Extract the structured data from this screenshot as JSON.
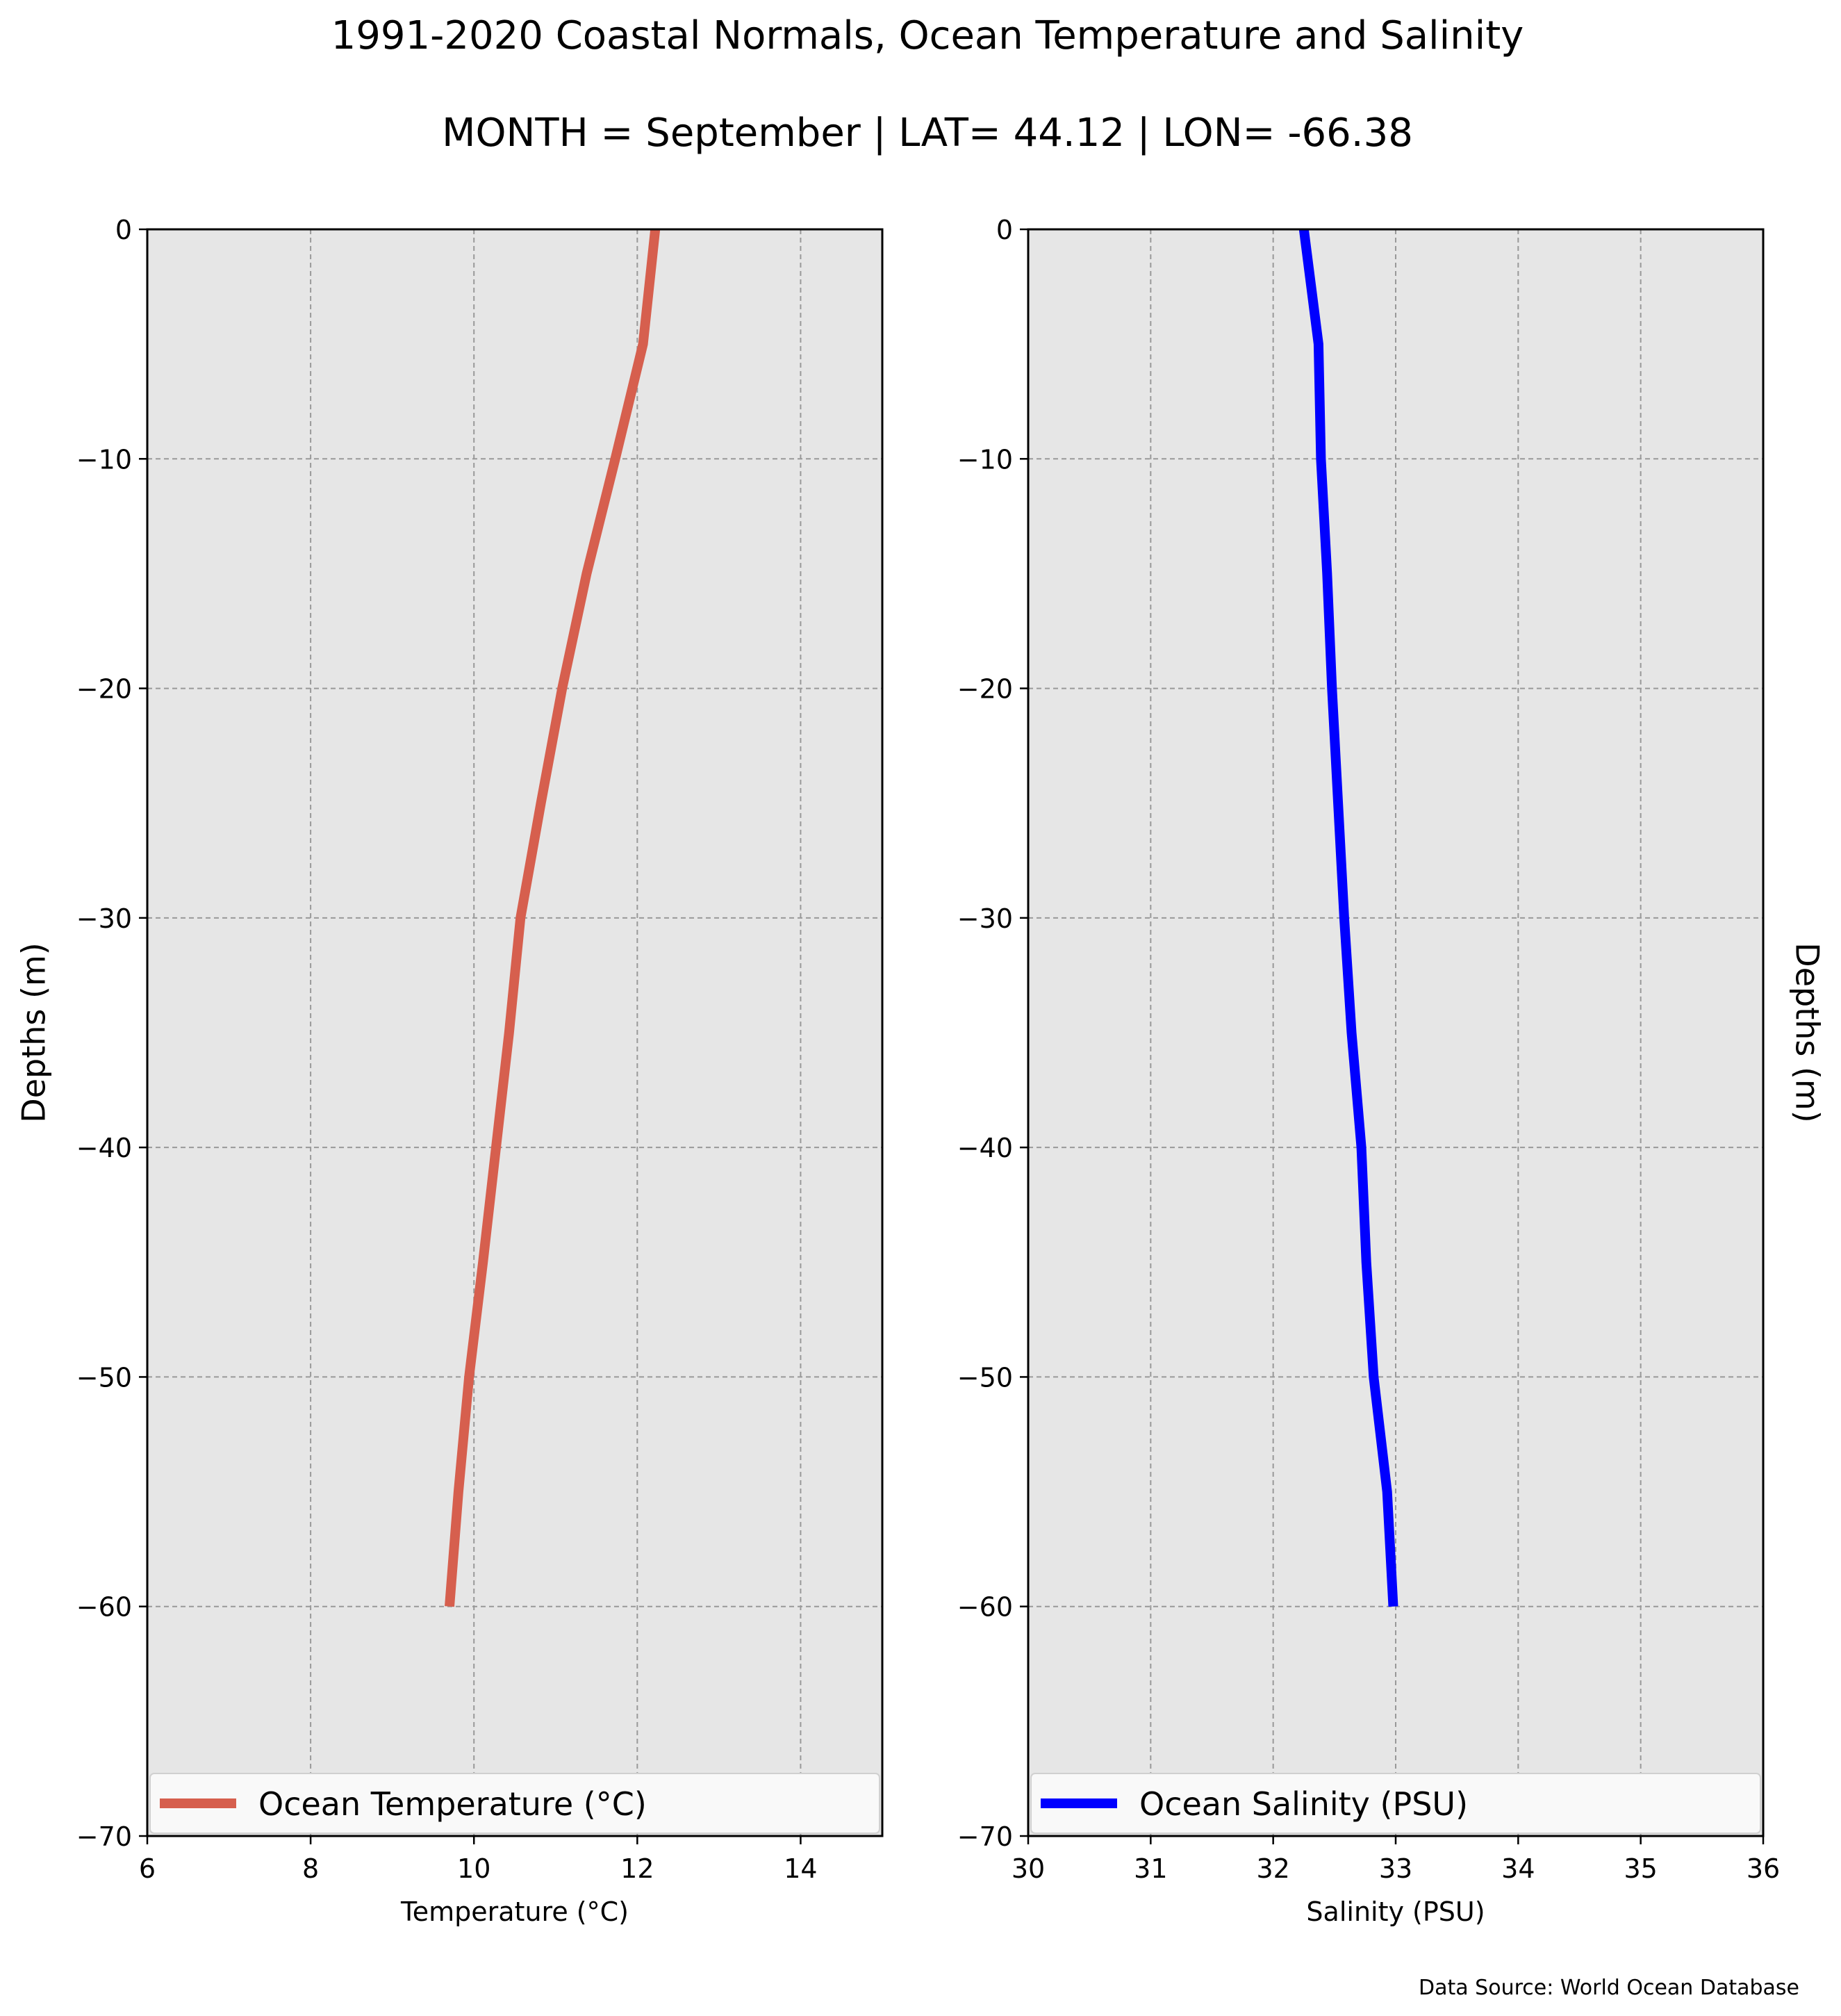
{
  "title": "1991-2020 Coastal Normals, Ocean Temperature and Salinity",
  "subtitle": "MONTH = September | LAT= 44.12 | LON= -66.38",
  "source_note": "Data Source: World Ocean Database",
  "colors": {
    "plot_background": "#e6e6e6",
    "grid": "#999999",
    "temperature_line": "#d65f4e",
    "salinity_line": "#0000ff"
  },
  "chart_data": [
    {
      "type": "line",
      "xlabel": "Temperature ($^\\circ$C)",
      "xlabel_text": "Temperature (°C)",
      "ylabel": "Depths (m)",
      "xlim": [
        6,
        15
      ],
      "ylim": [
        -70,
        0
      ],
      "xticks": [
        6,
        8,
        10,
        12,
        14
      ],
      "xtick_labels": [
        "6",
        "8",
        "10",
        "12",
        "14"
      ],
      "yticks": [
        0,
        -10,
        -20,
        -30,
        -40,
        -50,
        -60,
        -70
      ],
      "ytick_labels": [
        "0",
        "−10",
        "−20",
        "−30",
        "−40",
        "−50",
        "−60",
        "−70"
      ],
      "grid": true,
      "legend_position": "lower",
      "series": [
        {
          "name": "Ocean Temperature (°C)",
          "color": "#d65f4e",
          "x": [
            12.22,
            12.07,
            11.73,
            11.38,
            11.08,
            10.82,
            10.57,
            10.43,
            10.27,
            10.11,
            9.94,
            9.81,
            9.7
          ],
          "y": [
            0,
            -5,
            -10,
            -15,
            -20,
            -25,
            -30,
            -35,
            -40,
            -45,
            -50,
            -55,
            -60
          ]
        }
      ]
    },
    {
      "type": "line",
      "xlabel": "Salinity (PSU)",
      "ylabel": "Depths (m)",
      "xlim": [
        30,
        36
      ],
      "ylim": [
        -70,
        0
      ],
      "xticks": [
        30,
        31,
        32,
        33,
        34,
        35,
        36
      ],
      "xtick_labels": [
        "30",
        "31",
        "32",
        "33",
        "34",
        "35",
        "36"
      ],
      "yticks": [
        0,
        -10,
        -20,
        -30,
        -40,
        -50,
        -60,
        -70
      ],
      "ytick_labels": [
        "0",
        "−10",
        "−20",
        "−30",
        "−40",
        "−50",
        "−60",
        "−70"
      ],
      "grid": true,
      "legend_position": "lower",
      "series": [
        {
          "name": "Ocean Salinity (PSU)",
          "color": "#0000ff",
          "x": [
            32.25,
            32.37,
            32.39,
            32.44,
            32.48,
            32.53,
            32.58,
            32.64,
            32.72,
            32.76,
            32.82,
            32.93,
            32.98
          ],
          "y": [
            0,
            -5,
            -10,
            -15,
            -20,
            -25,
            -30,
            -35,
            -40,
            -45,
            -50,
            -55,
            -60
          ]
        }
      ]
    }
  ]
}
